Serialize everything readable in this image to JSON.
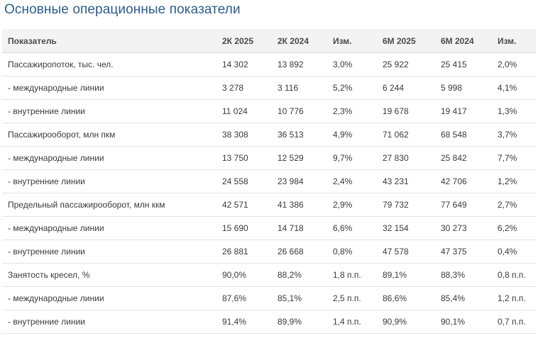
{
  "title": "Основные операционные показатели",
  "table": {
    "headers": [
      "Показатель",
      "2К 2025",
      "2К 2024",
      "Изм.",
      "6М 2025",
      "6М 2024",
      "Изм."
    ],
    "rows": [
      [
        "Пассажиропоток, тыс. чел.",
        "14 302",
        "13 892",
        "3,0%",
        "25 922",
        "25 415",
        "2,0%"
      ],
      [
        "- международные линии",
        "3 278",
        "3 116",
        "5,2%",
        "6 244",
        "5 998",
        "4,1%"
      ],
      [
        "- внутренние линии",
        "11 024",
        "10 776",
        "2,3%",
        "19 678",
        "19 417",
        "1,3%"
      ],
      [
        "Пассажирооборот, млн пкм",
        "38 308",
        "36 513",
        "4,9%",
        "71 062",
        "68 548",
        "3,7%"
      ],
      [
        "- международные линии",
        "13 750",
        "12 529",
        "9,7%",
        "27 830",
        "25 842",
        "7,7%"
      ],
      [
        "- внутренние линии",
        "24 558",
        "23 984",
        "2,4%",
        "43 231",
        "42 706",
        "1,2%"
      ],
      [
        "Предельный пассажирооборот, млн ккм",
        "42 571",
        "41 386",
        "2,9%",
        "79 732",
        "77 649",
        "2,7%"
      ],
      [
        "- международные линии",
        "15 690",
        "14 718",
        "6,6%",
        "32 154",
        "30 273",
        "6,2%"
      ],
      [
        "- внутренние линии",
        "26 881",
        "26 668",
        "0,8%",
        "47 578",
        "47 375",
        "0,4%"
      ],
      [
        "Занятость кресел, %",
        "90,0%",
        "88,2%",
        "1,8 п.п.",
        "89,1%",
        "88,3%",
        "0,8 п.п."
      ],
      [
        "- международные линии",
        "87,6%",
        "85,1%",
        "2,5 п.п.",
        "86,6%",
        "85,4%",
        "1,2 п.п."
      ],
      [
        "- внутренние линии",
        "91,4%",
        "89,9%",
        "1,4 п.п.",
        "90,9%",
        "90,1%",
        "0,7 п.п."
      ]
    ]
  }
}
